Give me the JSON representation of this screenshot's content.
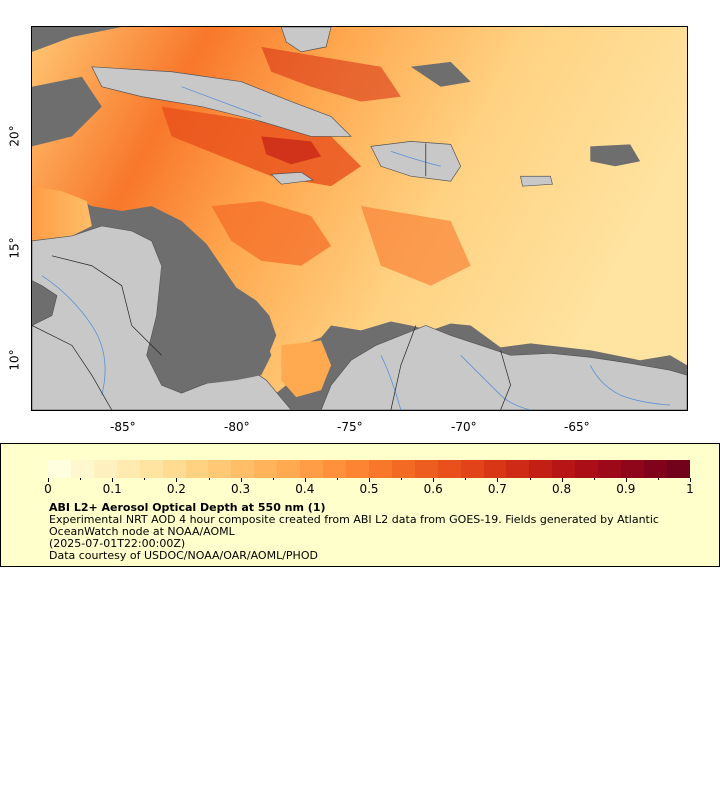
{
  "map": {
    "colors": {
      "land": "#c8c8c8",
      "no_data": "#6e6e6e",
      "coast": "#555555",
      "rivers": "#5b8fd6",
      "borders": "#222222"
    },
    "lon_ticks": [
      "-85°",
      "-80°",
      "-75°",
      "-70°",
      "-65°"
    ],
    "lat_ticks": [
      "20°",
      "15°",
      "10°"
    ]
  },
  "legend": {
    "colorbar_colors": [
      "#ffffe0",
      "#fff8cf",
      "#fff1bf",
      "#ffeab0",
      "#ffe3a0",
      "#ffdc91",
      "#ffd282",
      "#ffc874",
      "#ffbe67",
      "#ffb35b",
      "#ffa950",
      "#ff9d46",
      "#ff913c",
      "#fc8433",
      "#f8772b",
      "#f36a25",
      "#ee5d20",
      "#e9501c",
      "#e24318",
      "#d93616",
      "#cf2a15",
      "#c41f15",
      "#b81616",
      "#ab0e17",
      "#9d0918",
      "#8f061a",
      "#80031b",
      "#72011c"
    ],
    "ticks": [
      "0",
      "0.1",
      "0.2",
      "0.3",
      "0.4",
      "0.5",
      "0.6",
      "0.7",
      "0.8",
      "0.9",
      "1"
    ],
    "title": "ABI L2+ Aerosol Optical Depth at 550 nm (1)",
    "description": "Experimental NRT AOD 4 hour composite created from ABI L2 data from GOES-19. Fields generated by Atlantic OceanWatch node at NOAA/AOML",
    "time": "(2025-07-01T22:00:00Z)",
    "credit": "Data courtesy of USDOC/NOAA/OAR/AOML/PHOD"
  }
}
